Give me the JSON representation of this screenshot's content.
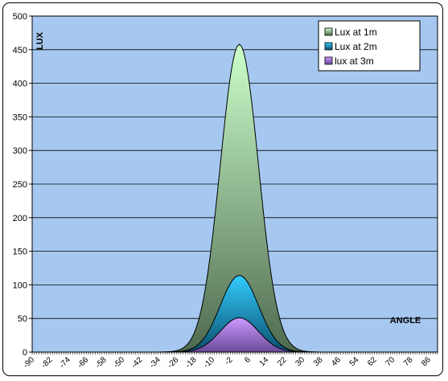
{
  "chart_data": {
    "type": "area",
    "title": "",
    "xlabel": "ANGLE",
    "ylabel": "LUX",
    "ylim": [
      0,
      500
    ],
    "y_ticks": [
      0,
      50,
      100,
      150,
      200,
      250,
      300,
      350,
      400,
      450,
      500
    ],
    "x_tick_labels": [
      "-90",
      "-82",
      "-74",
      "-66",
      "-58",
      "-50",
      "-42",
      "-34",
      "-26",
      "-18",
      "-10",
      "-2",
      "6",
      "14",
      "22",
      "30",
      "38",
      "46",
      "54",
      "62",
      "70",
      "78",
      "86"
    ],
    "x_range": [
      -90,
      90
    ],
    "peak_angle": 2,
    "grid": "horizontal",
    "legend_position": "top-right",
    "background_color": "#a6c8f0",
    "series": [
      {
        "name": "Lux at 1m",
        "peak": 458,
        "width": 8.5,
        "color_top": "#ccffcc",
        "color_bottom": "#4f6a4f"
      },
      {
        "name": "Lux at 2m",
        "peak": 114,
        "width": 8.5,
        "color_top": "#33ccff",
        "color_bottom": "#0a4f6e"
      },
      {
        "name": "lux at 3m",
        "peak": 51,
        "width": 8.5,
        "color_top": "#cc99ff",
        "color_bottom": "#6a4a9a"
      }
    ]
  }
}
